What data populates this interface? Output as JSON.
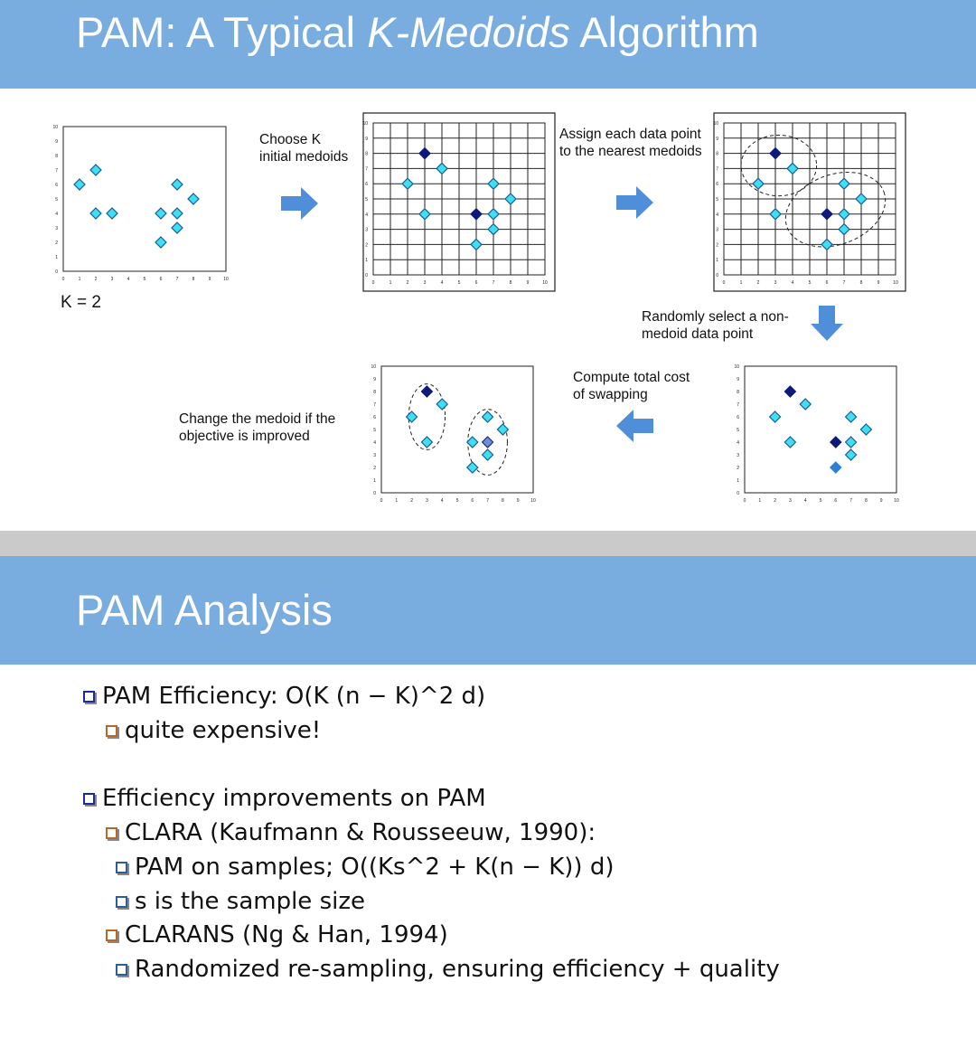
{
  "slide1": {
    "title_pre": "PAM: A Typical ",
    "title_em": "K-Medoids",
    "title_post": " Algorithm",
    "k_label": "K = 2",
    "captions": {
      "choose_k_1": "Choose K",
      "choose_k_2": "initial medoids",
      "assign_1": "Assign each data point",
      "assign_2": "to the nearest medoids",
      "random_1": "Randomly select a non-",
      "random_2": "medoid data point",
      "compute_1": "Compute total cost",
      "compute_2": "of swapping",
      "change_1": "Change the medoid if the",
      "change_2": "objective is improved"
    },
    "axis_ticks": [
      "0",
      "1",
      "2",
      "3",
      "4",
      "5",
      "6",
      "7",
      "8",
      "9",
      "10"
    ],
    "colors": {
      "point": "#3ee0f0",
      "medoid": "#0d1a7a",
      "candidate": "#2f7fd6",
      "swap": "#6a8fd8",
      "arrow": "#4f8fd9"
    },
    "plots": {
      "initial": {
        "points": [
          [
            1,
            6
          ],
          [
            2,
            7
          ],
          [
            3,
            4
          ],
          [
            2,
            4
          ],
          [
            6,
            2
          ],
          [
            6,
            4
          ],
          [
            7,
            4
          ],
          [
            7,
            3
          ],
          [
            7,
            6
          ],
          [
            8,
            5
          ]
        ]
      },
      "choose": {
        "points": [
          [
            2,
            6
          ],
          [
            4,
            7
          ],
          [
            3,
            4
          ],
          [
            6,
            2
          ],
          [
            7,
            4
          ],
          [
            7,
            3
          ],
          [
            7,
            6
          ],
          [
            8,
            5
          ]
        ],
        "medoids": [
          [
            3,
            8
          ],
          [
            6,
            4
          ]
        ]
      },
      "assign": {
        "points": [
          [
            2,
            6
          ],
          [
            4,
            7
          ],
          [
            3,
            4
          ],
          [
            6,
            2
          ],
          [
            7,
            4
          ],
          [
            7,
            3
          ],
          [
            7,
            6
          ],
          [
            8,
            5
          ]
        ],
        "medoids": [
          [
            3,
            8
          ],
          [
            6,
            4
          ]
        ]
      },
      "random": {
        "points": [
          [
            2,
            6
          ],
          [
            4,
            7
          ],
          [
            3,
            4
          ],
          [
            7,
            6
          ],
          [
            8,
            5
          ],
          [
            7,
            4
          ],
          [
            7,
            3
          ]
        ],
        "medoids": [
          [
            3,
            8
          ],
          [
            6,
            4
          ]
        ],
        "candidate": [
          [
            6,
            2
          ]
        ]
      },
      "change": {
        "points": [
          [
            2,
            6
          ],
          [
            4,
            7
          ],
          [
            3,
            4
          ],
          [
            6,
            4
          ],
          [
            8,
            5
          ],
          [
            7,
            6
          ],
          [
            7,
            3
          ],
          [
            6,
            2
          ]
        ],
        "medoids": [
          [
            3,
            8
          ]
        ],
        "swap": [
          [
            7,
            4
          ]
        ]
      }
    }
  },
  "slide2": {
    "title": "PAM Analysis",
    "bullets": [
      {
        "level": 1,
        "text": "PAM Efficiency: O(K (n − K)^2 d)"
      },
      {
        "level": 2,
        "text": "quite expensive!"
      },
      {
        "level": 1,
        "text": "Efficiency improvements on PAM"
      },
      {
        "level": 2,
        "text": "CLARA (Kaufmann & Rousseeuw, 1990):"
      },
      {
        "level": 3,
        "text": "PAM on samples; O((Ks^2 + K(n − K)) d)"
      },
      {
        "level": 3,
        "text": "s is the sample size"
      },
      {
        "level": 2,
        "text": "CLARANS (Ng & Han, 1994)"
      },
      {
        "level": 3,
        "text": "Randomized re-sampling, ensuring efficiency + quality"
      }
    ]
  }
}
